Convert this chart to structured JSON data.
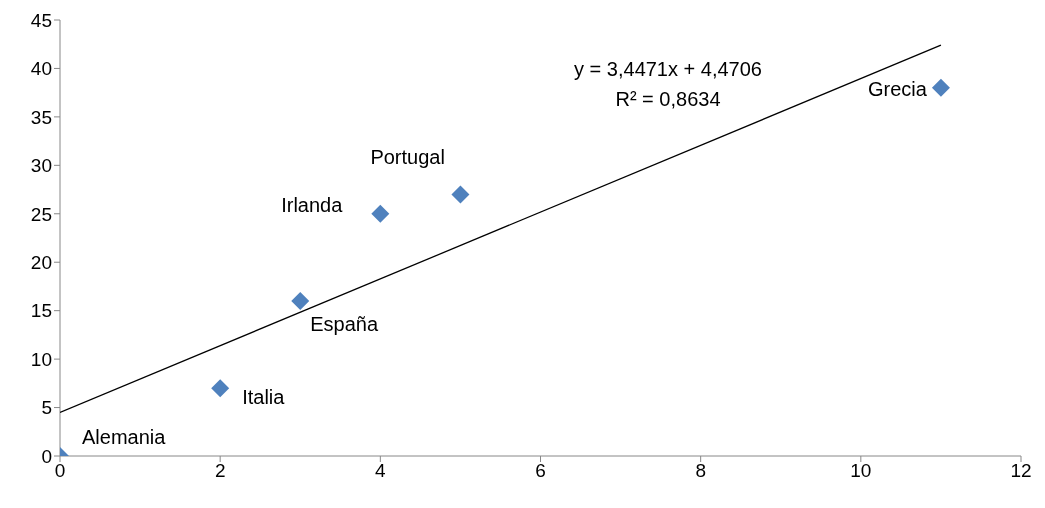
{
  "chart_data": {
    "type": "scatter",
    "series": [
      {
        "color": "#4f81bd",
        "x": [
          0,
          2,
          3,
          4,
          5,
          11
        ],
        "values": [
          0,
          7,
          16,
          25,
          27,
          38
        ],
        "marker": "diamond"
      },
      {
        "type": "line",
        "color": "#000000",
        "x": [
          0,
          11
        ],
        "values": [
          4.5,
          42.4
        ],
        "marker": "none"
      }
    ],
    "annotations": [
      {
        "text": "Alemania",
        "x": 0,
        "y": 0
      },
      {
        "text": "Italia",
        "x": 2,
        "y": 7
      },
      {
        "text": "España",
        "x": 3,
        "y": 16
      },
      {
        "text": "Irlanda",
        "x": 4,
        "y": 25
      },
      {
        "text": "Portugal",
        "x": 5,
        "y": 27
      },
      {
        "text": "Grecia",
        "x": 11,
        "y": 38
      },
      "y = 3,4471x + 4,4706",
      "R² = 0,8634"
    ],
    "xlim": [
      0,
      12
    ],
    "xticks": [
      0,
      2,
      4,
      6,
      8,
      10,
      12
    ],
    "ylim": [
      0,
      45
    ],
    "yticks": [
      0,
      5,
      10,
      15,
      20,
      25,
      30,
      35,
      40,
      45
    ],
    "grid": false,
    "legend": false,
    "line_style": "solid"
  }
}
